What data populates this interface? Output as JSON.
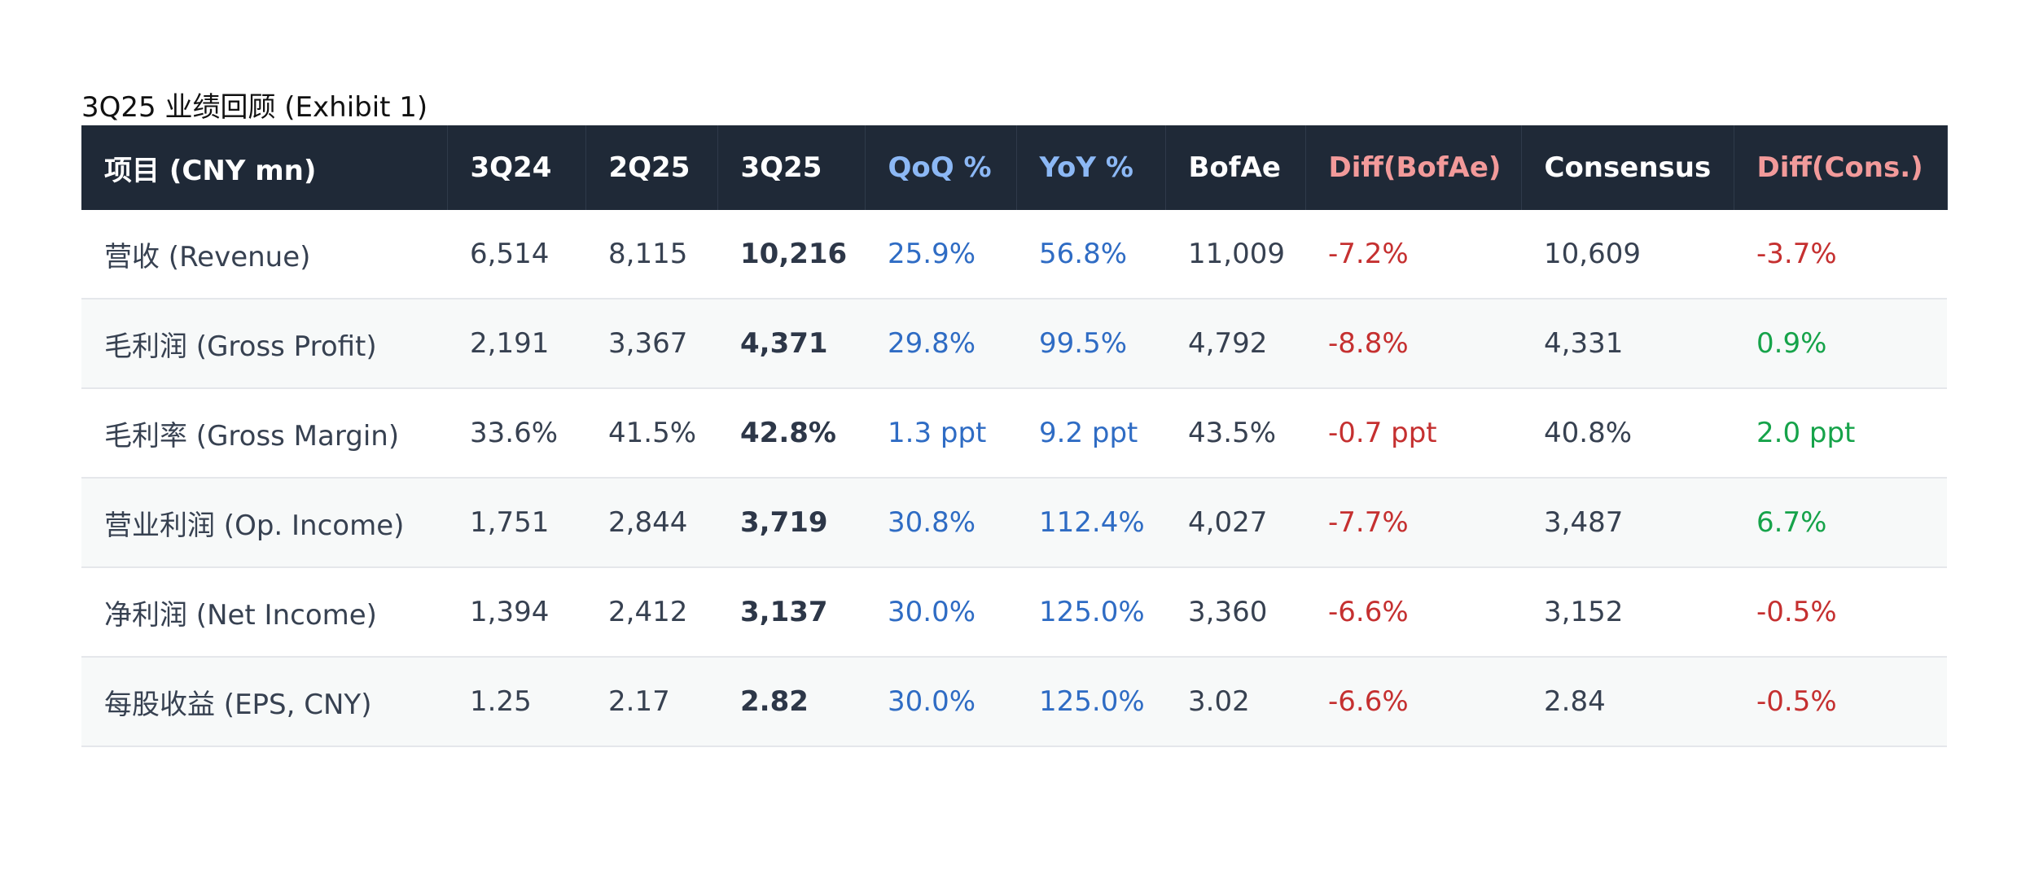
{
  "caption": "3Q25 业绩回顾 (Exhibit 1)",
  "table": {
    "header": [
      "项目 (CNY mn)",
      "3Q24",
      "2Q25",
      "3Q25",
      "QoQ %",
      "YoY %",
      "BofAe",
      "Diff(BofAe)",
      "Consensus",
      "Diff(Cons.)"
    ],
    "rows": [
      [
        "营收 (Revenue)",
        "6,514",
        "8,115",
        "10,216",
        "25.9%",
        "56.8%",
        "11,009",
        "-7.2%",
        "10,609",
        "-3.7%"
      ],
      [
        "毛利润 (Gross Profit)",
        "2,191",
        "3,367",
        "4,371",
        "29.8%",
        "99.5%",
        "4,792",
        "-8.8%",
        "4,331",
        "0.9%"
      ],
      [
        "毛利率 (Gross Margin)",
        "33.6%",
        "41.5%",
        "42.8%",
        "1.3 ppt",
        "9.2 ppt",
        "43.5%",
        "-0.7 ppt",
        "40.8%",
        "2.0 ppt"
      ],
      [
        "营业利润 (Op. Income)",
        "1,751",
        "2,844",
        "3,719",
        "30.8%",
        "112.4%",
        "4,027",
        "-7.7%",
        "3,487",
        "6.7%"
      ],
      [
        "净利润 (Net Income)",
        "1,394",
        "2,412",
        "3,137",
        "30.0%",
        "125.0%",
        "3,360",
        "-6.6%",
        "3,152",
        "-0.5%"
      ],
      [
        "每股收益 (EPS, CNY)",
        "1.25",
        "2.17",
        "2.82",
        "30.0%",
        "125.0%",
        "3.02",
        "-6.6%",
        "2.84",
        "-0.5%"
      ]
    ]
  }
}
